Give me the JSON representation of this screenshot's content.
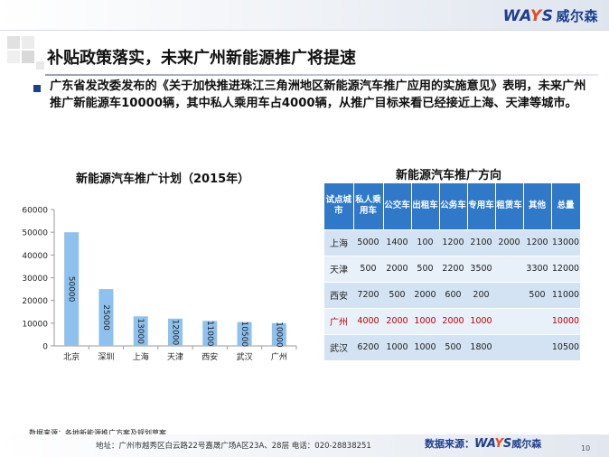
{
  "logo": {
    "brand_pre": "WA",
    "brand_y": "Y",
    "brand_post": "S",
    "brand_cn": "威尔森"
  },
  "title": "补贴政策落实，未来广州新能源推广将提速",
  "paragraph": "广东省发改委发布的《关于加快推进珠江三角洲地区新能源汽车推广应用的实施意见》表明，未来广州推广新能源车10000辆，其中私人乘用车占4000辆，从推广目标来看已经接近上海、天津等城市。",
  "chart_data": {
    "type": "bar",
    "title": "新能源汽车推广计划（2015年）",
    "categories": [
      "北京",
      "深圳",
      "上海",
      "天津",
      "西安",
      "武汉",
      "广州"
    ],
    "values": [
      50000,
      25000,
      13000,
      12000,
      11000,
      10500,
      10000
    ],
    "value_labels": [
      "50000",
      "25000",
      "13000",
      "12000",
      "11000",
      "10500",
      "10000"
    ],
    "yticks": [
      "0",
      "10000",
      "20000",
      "30000",
      "40000",
      "50000",
      "60000"
    ],
    "ylim": [
      0,
      60000
    ],
    "bar_color": "#8fc1ee"
  },
  "table": {
    "title": "新能源汽车推广方向",
    "headers": [
      "试点城市",
      "私人乘用车",
      "公交车",
      "出租车",
      "公务车",
      "专用车",
      "租赁车",
      "其他",
      "总量"
    ],
    "rows": [
      {
        "cells": [
          "上海",
          "5000",
          "1400",
          "100",
          "1200",
          "2100",
          "2000",
          "1200",
          "13000"
        ],
        "highlight": false
      },
      {
        "cells": [
          "天津",
          "500",
          "2000",
          "500",
          "2200",
          "3500",
          "",
          "3300",
          "12000"
        ],
        "highlight": false
      },
      {
        "cells": [
          "西安",
          "7200",
          "500",
          "2000",
          "600",
          "200",
          "",
          "500",
          "11000"
        ],
        "highlight": false
      },
      {
        "cells": [
          "广州",
          "4000",
          "2000",
          "1000",
          "2000",
          "1000",
          "",
          "",
          "10000"
        ],
        "highlight": true
      },
      {
        "cells": [
          "武汉",
          "6200",
          "1000",
          "1000",
          "500",
          "1800",
          "",
          "",
          "10500"
        ],
        "highlight": false
      }
    ],
    "header_color": "#2f79c8",
    "highlight_color": "#c00000"
  },
  "footer": {
    "source_left": "数据来源：各地新能源推广方案及规划草案",
    "address": "地址：广州市越秀区白云路22号嘉晟广场A区23A、28层   电话：020-28838251",
    "source_right_label": "数据来源：",
    "page_number": "10"
  }
}
